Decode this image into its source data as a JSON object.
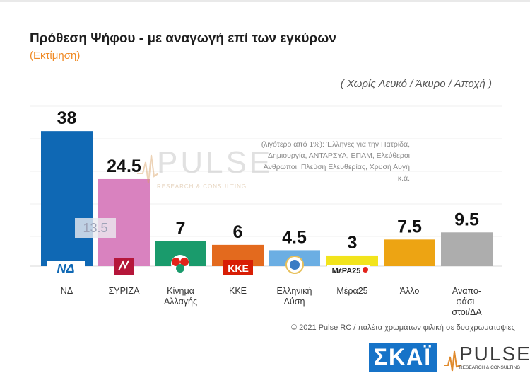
{
  "header": {
    "title": "Πρόθεση Ψήφου - με αναγωγή επί των εγκύρων",
    "subtitle": "(Εκτίμηση)",
    "note": "( Χωρίς Λευκό / Άκυρο / Αποχή )"
  },
  "annotation": "(λιγότερο από 1%): Έλληνες για την Πατρίδα, Δημιουργία, ΑΝΤΑΡΣΥΑ, ΕΠΑΜ, Ελεύθεροι Άνθρωποι, Πλεύση Ελευθερίας, Χρυσή Αυγή κ.ά.",
  "ghost_label": "13.5",
  "watermark": {
    "word": "PULSE",
    "sub": "RESEARCH & CONSULTING"
  },
  "footer": {
    "credit": "© 2021 Pulse RC  /  παλέτα χρωμάτων φιλική σε δυσχρωματοψίες",
    "skai": "ΣΚΑΪ",
    "pulse": "PULSE",
    "pulse_sub": "RESEARCH & CONSULTING"
  },
  "logos": [
    "ΝΔ",
    "ΚΚΕ",
    "ΜέΡΑ25"
  ],
  "colors": {
    "nd": "#0f68b4",
    "syriza": "#d982bf",
    "kinal": "#1a9b6c",
    "kke": "#e36a1e",
    "el": "#6baee3",
    "mera25": "#f2e41c",
    "allo": "#eda413",
    "anap": "#adadad",
    "accent": "#f08a24"
  },
  "chart_data": {
    "type": "bar",
    "title": "Πρόθεση Ψήφου - με αναγωγή επί των εγκύρων",
    "subtitle": "(Εκτίμηση)",
    "categories": [
      "ΝΔ",
      "ΣΥΡΙΖΑ",
      "Κίνημα Αλλαγής",
      "ΚΚΕ",
      "Ελληνική Λύση",
      "Μέρα25",
      "Άλλο",
      "Αναποφάσιστοι/ΔΑ"
    ],
    "category_lines": [
      [
        "ΝΔ"
      ],
      [
        "ΣΥΡΙΖΑ"
      ],
      [
        "Κίνημα",
        "Αλλαγής"
      ],
      [
        "ΚΚΕ"
      ],
      [
        "Ελληνική",
        "Λύση"
      ],
      [
        "Μέρα25"
      ],
      [
        "Άλλο"
      ],
      [
        "Αναπο-",
        "φάσι-",
        "στοι/ΔΑ"
      ]
    ],
    "values": [
      38,
      24.5,
      7,
      6,
      4.5,
      3,
      7.5,
      9.5
    ],
    "value_labels": [
      "38",
      "24.5",
      "7",
      "6",
      "4.5",
      "3",
      "7.5",
      "9.5"
    ],
    "ylim": [
      0,
      45
    ],
    "grid": true,
    "xlabel": "",
    "ylabel": ""
  }
}
